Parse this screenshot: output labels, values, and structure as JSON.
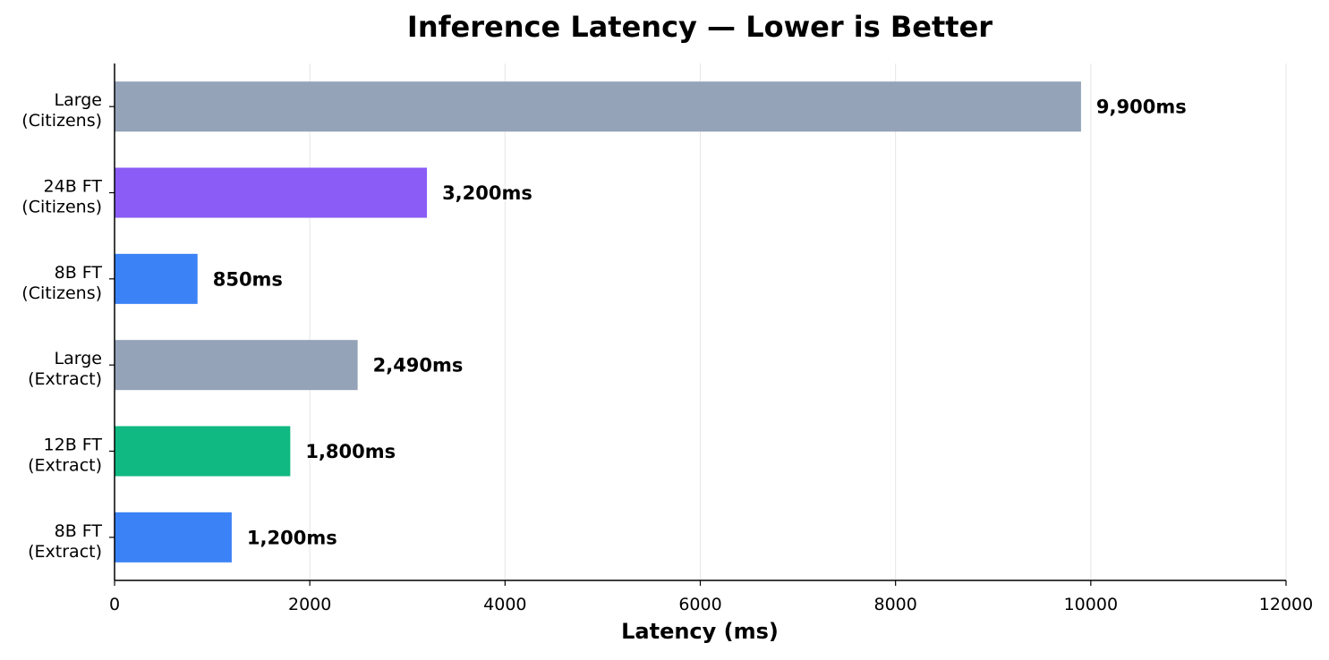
{
  "chart_data": {
    "type": "bar",
    "orientation": "horizontal",
    "title": "Inference Latency — Lower is Better",
    "xlabel": "Latency (ms)",
    "ylabel": "",
    "xlim": [
      0,
      12000
    ],
    "xticks": [
      0,
      2000,
      4000,
      6000,
      8000,
      10000,
      12000
    ],
    "grid": "vertical",
    "legend": "none",
    "bars": [
      {
        "label_lines": [
          "Large",
          "(Citizens)"
        ],
        "value": 9900,
        "value_label": "9,900ms",
        "color": "#94a3b8"
      },
      {
        "label_lines": [
          "24B FT",
          "(Citizens)"
        ],
        "value": 3200,
        "value_label": "3,200ms",
        "color": "#8b5cf6"
      },
      {
        "label_lines": [
          "8B FT",
          "(Citizens)"
        ],
        "value": 850,
        "value_label": "850ms",
        "color": "#3b82f6"
      },
      {
        "label_lines": [
          "Large",
          "(Extract)"
        ],
        "value": 2490,
        "value_label": "2,490ms",
        "color": "#94a3b8"
      },
      {
        "label_lines": [
          "12B FT",
          "(Extract)"
        ],
        "value": 1800,
        "value_label": "1,800ms",
        "color": "#10b981"
      },
      {
        "label_lines": [
          "8B FT",
          "(Extract)"
        ],
        "value": 1200,
        "value_label": "1,200ms",
        "color": "#3b82f6"
      }
    ]
  }
}
